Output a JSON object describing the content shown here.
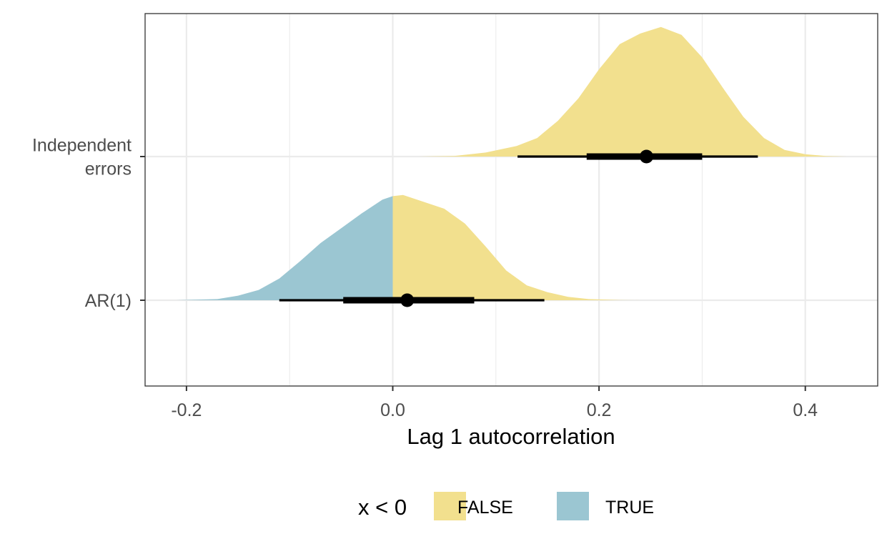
{
  "chart_data": {
    "type": "halfeye",
    "title": "",
    "xlabel": "Lag 1 autocorrelation",
    "ylabel": "",
    "xlim": [
      -0.24,
      0.47
    ],
    "x_ticks": [
      -0.2,
      0.0,
      0.2,
      0.4
    ],
    "x_tick_labels": [
      "-0.2",
      "0.0",
      "0.2",
      "0.4"
    ],
    "grid": true,
    "legend": {
      "title": "x < 0",
      "position": "bottom",
      "entries": [
        {
          "label": "FALSE",
          "color": "#f2e08e"
        },
        {
          "label": "TRUE",
          "color": "#9bc6d2"
        }
      ]
    },
    "rows": [
      {
        "label": [
          "Independent",
          "errors"
        ],
        "point": 0.246,
        "interval_66": [
          0.188,
          0.3
        ],
        "interval_95": [
          0.121,
          0.354
        ],
        "density": [
          [
            0.025,
            0.0
          ],
          [
            0.06,
            0.005
          ],
          [
            0.09,
            0.03
          ],
          [
            0.12,
            0.08
          ],
          [
            0.14,
            0.14
          ],
          [
            0.16,
            0.27
          ],
          [
            0.18,
            0.44
          ],
          [
            0.2,
            0.66
          ],
          [
            0.22,
            0.85
          ],
          [
            0.24,
            0.93
          ],
          [
            0.26,
            0.98
          ],
          [
            0.28,
            0.92
          ],
          [
            0.3,
            0.75
          ],
          [
            0.32,
            0.52
          ],
          [
            0.34,
            0.3
          ],
          [
            0.36,
            0.14
          ],
          [
            0.38,
            0.05
          ],
          [
            0.4,
            0.018
          ],
          [
            0.42,
            0.004
          ],
          [
            0.44,
            0.0
          ]
        ]
      },
      {
        "label": [
          "AR(1)"
        ],
        "point": 0.014,
        "interval_66": [
          -0.048,
          0.079
        ],
        "interval_95": [
          -0.11,
          0.147
        ],
        "density": [
          [
            -0.21,
            0.0
          ],
          [
            -0.17,
            0.01
          ],
          [
            -0.15,
            0.04
          ],
          [
            -0.13,
            0.09
          ],
          [
            -0.11,
            0.19
          ],
          [
            -0.09,
            0.34
          ],
          [
            -0.07,
            0.5
          ],
          [
            -0.05,
            0.63
          ],
          [
            -0.03,
            0.76
          ],
          [
            -0.01,
            0.88
          ],
          [
            0.0,
            0.91
          ],
          [
            0.01,
            0.92
          ],
          [
            0.03,
            0.86
          ],
          [
            0.05,
            0.8
          ],
          [
            0.07,
            0.67
          ],
          [
            0.09,
            0.47
          ],
          [
            0.11,
            0.26
          ],
          [
            0.13,
            0.13
          ],
          [
            0.15,
            0.07
          ],
          [
            0.17,
            0.03
          ],
          [
            0.19,
            0.01
          ],
          [
            0.22,
            0.002
          ],
          [
            0.24,
            0.0
          ]
        ]
      }
    ]
  }
}
